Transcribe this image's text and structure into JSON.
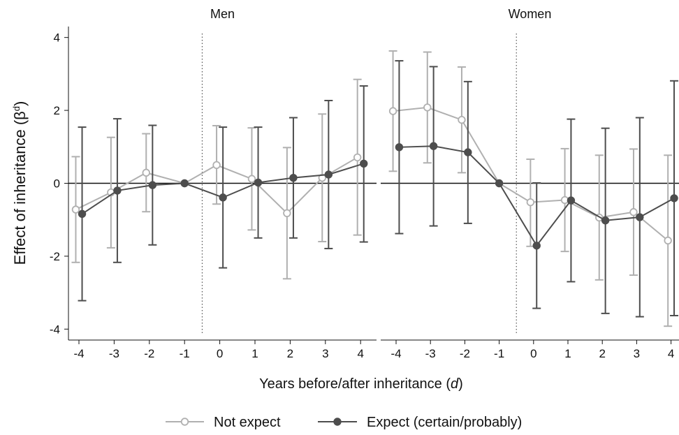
{
  "chart_data": {
    "type": "line",
    "xlabel": "Years before/after inheritance (d)",
    "ylabel": "Effect of inheritance (β^d)",
    "x_ticks": [
      -4,
      -3,
      -2,
      -1,
      0,
      1,
      2,
      3,
      4
    ],
    "y_ticks": [
      -4,
      -2,
      0,
      2,
      4
    ],
    "ylim": [
      -4.3,
      4.3
    ],
    "reference_line_y": 0,
    "event_line_x": -0.5,
    "legend": {
      "placement": "bottom",
      "entries": [
        "Not expect",
        "Expect (certain/probably)"
      ]
    },
    "colors": {
      "not_expect": "#b0b0b0",
      "expect": "#4d4d4d"
    },
    "panels": [
      {
        "title": "Men",
        "series": [
          {
            "name": "Not expect",
            "x": [
              -4,
              -3,
              -2,
              -1,
              0,
              1,
              2,
              3,
              4
            ],
            "y": [
              -0.72,
              -0.25,
              0.29,
              0.0,
              0.5,
              0.12,
              -0.82,
              0.15,
              0.71
            ],
            "ci_low": [
              -2.17,
              -1.77,
              -0.78,
              0.0,
              -0.57,
              -1.28,
              -2.62,
              -1.6,
              -1.42
            ],
            "ci_high": [
              0.73,
              1.26,
              1.36,
              0.0,
              1.58,
              1.52,
              0.98,
              1.9,
              2.85
            ]
          },
          {
            "name": "Expect (certain/probably)",
            "x": [
              -4,
              -3,
              -2,
              -1,
              0,
              1,
              2,
              3,
              4
            ],
            "y": [
              -0.84,
              -0.2,
              -0.05,
              0.0,
              -0.39,
              0.02,
              0.15,
              0.24,
              0.54
            ],
            "ci_low": [
              -3.22,
              -2.17,
              -1.69,
              0.0,
              -2.32,
              -1.5,
              -1.5,
              -1.79,
              -1.61
            ],
            "ci_high": [
              1.54,
              1.77,
              1.59,
              0.0,
              1.54,
              1.54,
              1.8,
              2.27,
              2.67
            ]
          }
        ]
      },
      {
        "title": "Women",
        "series": [
          {
            "name": "Not expect",
            "x": [
              -4,
              -3,
              -2,
              -1,
              0,
              1,
              2,
              3,
              4
            ],
            "y": [
              1.98,
              2.08,
              1.74,
              0.0,
              -0.52,
              -0.46,
              -0.94,
              -0.79,
              -1.57
            ],
            "ci_low": [
              0.33,
              0.56,
              0.29,
              0.0,
              -1.73,
              -1.87,
              -2.65,
              -2.52,
              -3.92
            ],
            "ci_high": [
              3.63,
              3.6,
              3.19,
              0.0,
              0.66,
              0.95,
              0.77,
              0.94,
              0.77
            ]
          },
          {
            "name": "Expect (certain/probably)",
            "x": [
              -4,
              -3,
              -2,
              -1,
              0,
              1,
              2,
              3,
              4
            ],
            "y": [
              0.99,
              1.02,
              0.85,
              0.0,
              -1.71,
              -0.47,
              -1.02,
              -0.93,
              -0.41
            ],
            "ci_low": [
              -1.38,
              -1.17,
              -1.1,
              0.0,
              -3.43,
              -2.7,
              -3.57,
              -3.66,
              -3.63
            ],
            "ci_high": [
              3.36,
              3.2,
              2.79,
              0.0,
              0.01,
              1.76,
              1.51,
              1.8,
              2.81
            ]
          }
        ]
      }
    ]
  }
}
